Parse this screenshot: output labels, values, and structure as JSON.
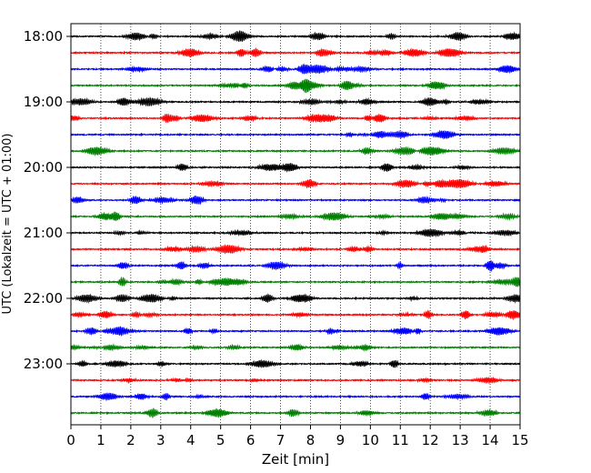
{
  "chart_data": {
    "type": "line",
    "title": "",
    "xlabel": "Zeit  [min]",
    "ylabel": "UTC (Lokalzeit = UTC + 01:00)",
    "xlim": [
      0,
      15
    ],
    "x_ticks": [
      0,
      1,
      2,
      3,
      4,
      5,
      6,
      7,
      8,
      9,
      10,
      11,
      12,
      13,
      14,
      15
    ],
    "y_ticks": [
      "18:00",
      "19:00",
      "20:00",
      "21:00",
      "22:00",
      "23:00"
    ],
    "vertical_grid": "dotted",
    "trace_colors": [
      "#000000",
      "#ff0000",
      "#0000ff",
      "#008000"
    ],
    "trace_minutes": 15,
    "series": [
      {
        "start": "18:00",
        "color": "#000000"
      },
      {
        "start": "18:15",
        "color": "#ff0000"
      },
      {
        "start": "18:30",
        "color": "#0000ff"
      },
      {
        "start": "18:45",
        "color": "#008000"
      },
      {
        "start": "19:00",
        "color": "#000000"
      },
      {
        "start": "19:15",
        "color": "#ff0000"
      },
      {
        "start": "19:30",
        "color": "#0000ff"
      },
      {
        "start": "19:45",
        "color": "#008000"
      },
      {
        "start": "20:00",
        "color": "#000000"
      },
      {
        "start": "20:15",
        "color": "#ff0000"
      },
      {
        "start": "20:30",
        "color": "#0000ff"
      },
      {
        "start": "20:45",
        "color": "#008000"
      },
      {
        "start": "21:00",
        "color": "#000000"
      },
      {
        "start": "21:15",
        "color": "#ff0000"
      },
      {
        "start": "21:30",
        "color": "#0000ff"
      },
      {
        "start": "21:45",
        "color": "#008000"
      },
      {
        "start": "22:00",
        "color": "#000000"
      },
      {
        "start": "22:15",
        "color": "#ff0000"
      },
      {
        "start": "22:30",
        "color": "#0000ff"
      },
      {
        "start": "22:45",
        "color": "#008000"
      },
      {
        "start": "23:00",
        "color": "#000000"
      },
      {
        "start": "23:15",
        "color": "#ff0000"
      },
      {
        "start": "23:30",
        "color": "#0000ff"
      },
      {
        "start": "23:45",
        "color": "#008000"
      }
    ]
  }
}
